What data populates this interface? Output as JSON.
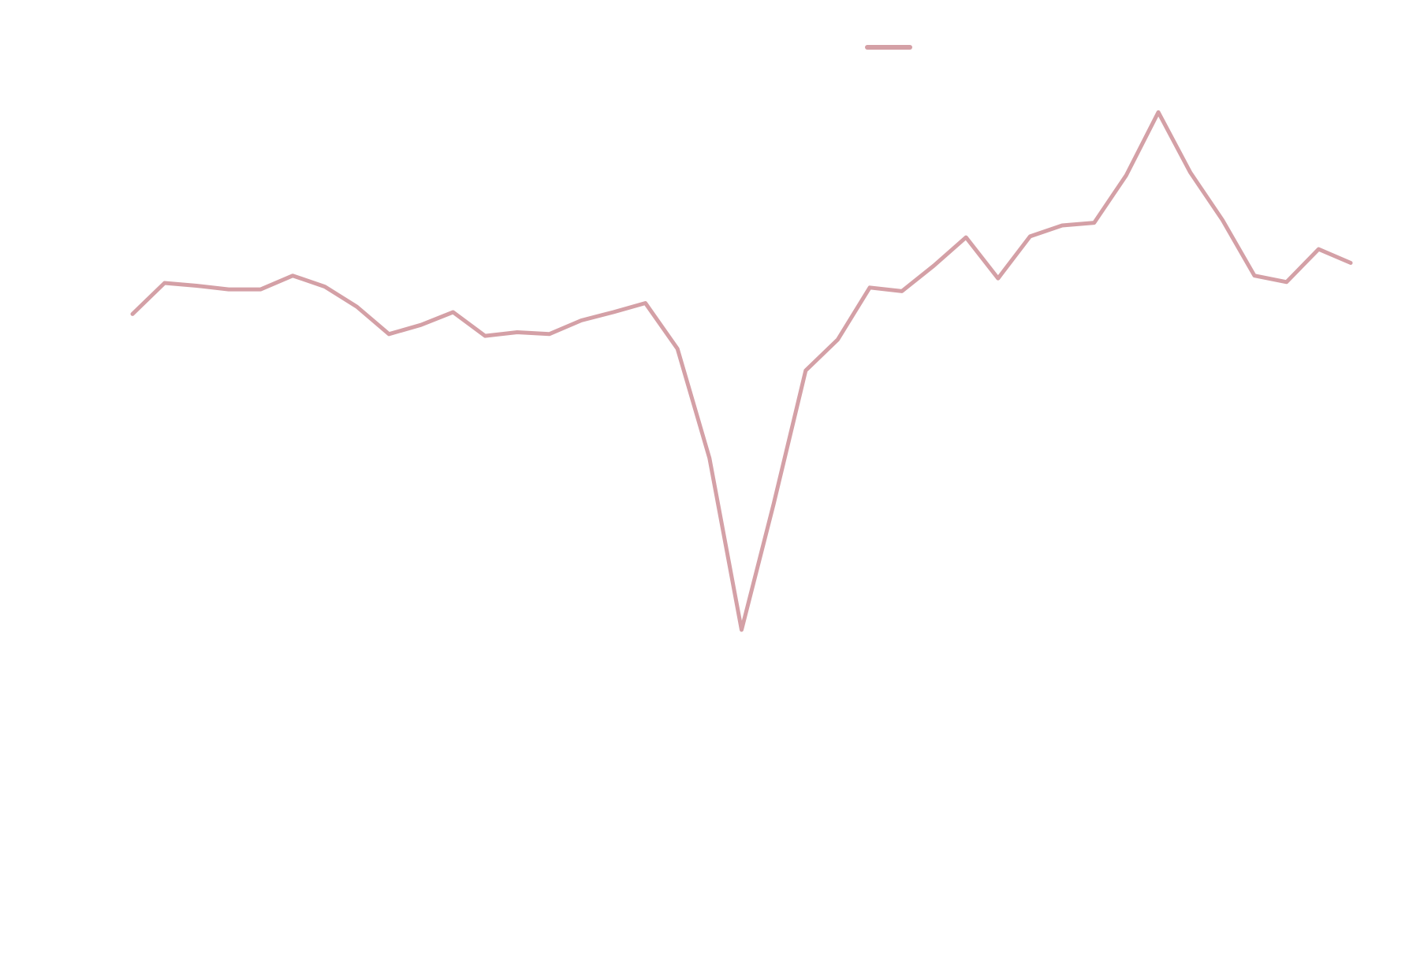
{
  "chart_data": {
    "type": "line",
    "categories": [
      null,
      null,
      null,
      null,
      null,
      null,
      null,
      null,
      null,
      null,
      null,
      null,
      null,
      null,
      null,
      null,
      null,
      null,
      null,
      null,
      null,
      null,
      null,
      null,
      null,
      null,
      null,
      null,
      null,
      null,
      null,
      null,
      null,
      null,
      null,
      null,
      null,
      null,
      null
    ],
    "series": [
      {
        "color": "#d4a0a6",
        "values": [
          65.6,
          69,
          68.7,
          68.3,
          68.3,
          69.8,
          68.6,
          66.4,
          63.4,
          64.4,
          65.8,
          63.2,
          63.6,
          63.4,
          64.9,
          65.8,
          66.8,
          61.8,
          49.8,
          31,
          44.8,
          59.4,
          62.8,
          68.5,
          68.1,
          70.9,
          74,
          69.5,
          74.1,
          75.3,
          75.6,
          80.8,
          87.7,
          81.1,
          75.9,
          69.8,
          69.1,
          72.7,
          71.2
        ]
      }
    ],
    "ylim": [
      0,
      100
    ]
  }
}
